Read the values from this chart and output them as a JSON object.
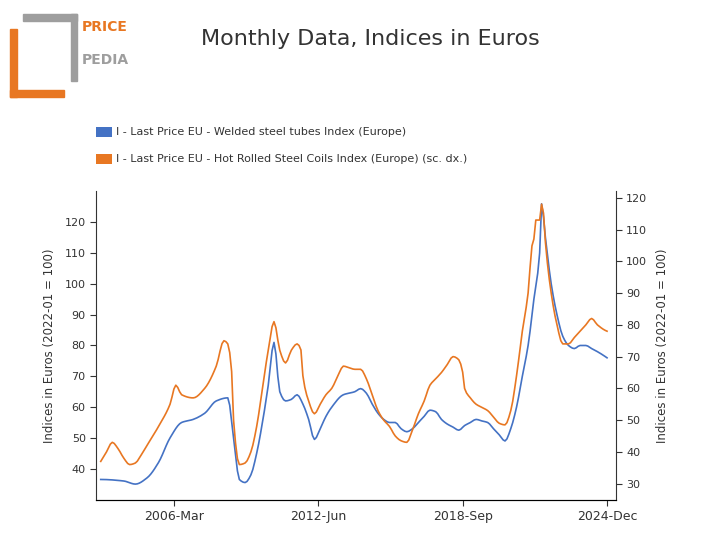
{
  "title": "Monthly Data, Indices in Euros",
  "ylabel_left": "Indices in Euros (2022-01 = 100)",
  "ylabel_right": "Indices in Euros (2022-01 = 100)",
  "legend_blue": "I - Last Price EU - Welded steel tubes Index (Europe)",
  "legend_orange": "I - Last Price EU - Hot Rolled Steel Coils Index (Europe) (sc. dx.)",
  "color_blue": "#4472C4",
  "color_orange": "#E87722",
  "xlim_start": 2002.8,
  "xlim_end": 2025.3,
  "ylim_left": [
    30,
    130
  ],
  "ylim_right": [
    25,
    122
  ],
  "xtick_labels": [
    "2006-Mar",
    "2012-Jun",
    "2018-Sep",
    "2024-Dec"
  ],
  "xtick_positions": [
    2006.17,
    2012.42,
    2018.67,
    2024.92
  ],
  "yticks_left": [
    40,
    50,
    60,
    70,
    80,
    90,
    100,
    110,
    120
  ],
  "yticks_right": [
    30,
    40,
    50,
    60,
    70,
    80,
    90,
    100,
    110,
    120
  ],
  "background_color": "#ffffff",
  "logo_orange": "#E87722",
  "logo_gray": "#9e9e9e",
  "title_color": "#333333",
  "tick_color": "#333333"
}
